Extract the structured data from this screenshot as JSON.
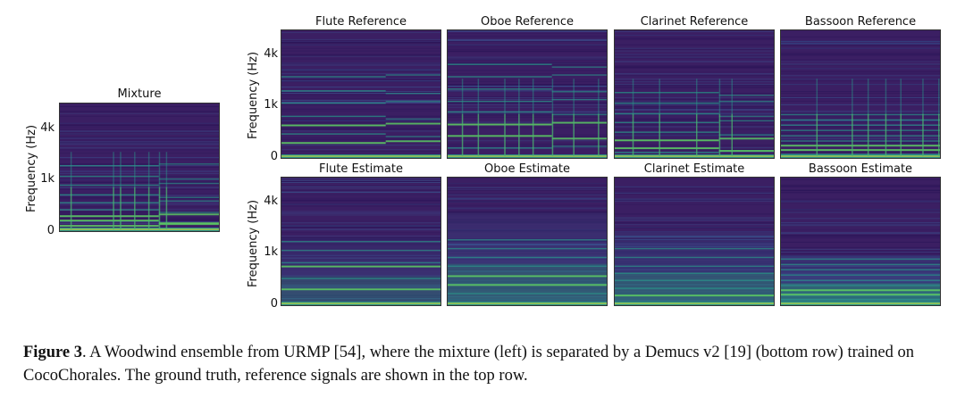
{
  "figure": {
    "panels": [
      {
        "id": "mixture",
        "title": "Mixture",
        "kind": "mixture"
      },
      {
        "id": "flute-ref",
        "title": "Flute Reference",
        "kind": "flute-ref"
      },
      {
        "id": "oboe-ref",
        "title": "Oboe Reference",
        "kind": "oboe-ref"
      },
      {
        "id": "clarinet-ref",
        "title": "Clarinet Reference",
        "kind": "clarinet-ref"
      },
      {
        "id": "bassoon-ref",
        "title": "Bassoon Reference",
        "kind": "bassoon-ref"
      },
      {
        "id": "flute-est",
        "title": "Flute Estimate",
        "kind": "flute-est"
      },
      {
        "id": "oboe-est",
        "title": "Oboe Estimate",
        "kind": "oboe-est"
      },
      {
        "id": "clarinet-est",
        "title": "Clarinet Estimate",
        "kind": "clarinet-est"
      },
      {
        "id": "bassoon-est",
        "title": "Bassoon Estimate",
        "kind": "bassoon-est"
      }
    ],
    "ylabel": "Frequency (Hz)",
    "yticks": [
      "4k",
      "1k",
      "0"
    ],
    "colors": {
      "background": "#3b1f63",
      "dark": "#2a1558",
      "mid": "#3a5a95",
      "teal": "#2a9a8a",
      "green": "#5cc863",
      "yellow": "#d8e23a"
    }
  },
  "caption": {
    "label": "Figure 3",
    "text": ". A Woodwind ensemble from URMP [54], where the mixture (left) is separated by a Demucs v2 [19] (bottom row) trained on CocoChorales. The ground truth, reference signals are shown in the top row."
  }
}
